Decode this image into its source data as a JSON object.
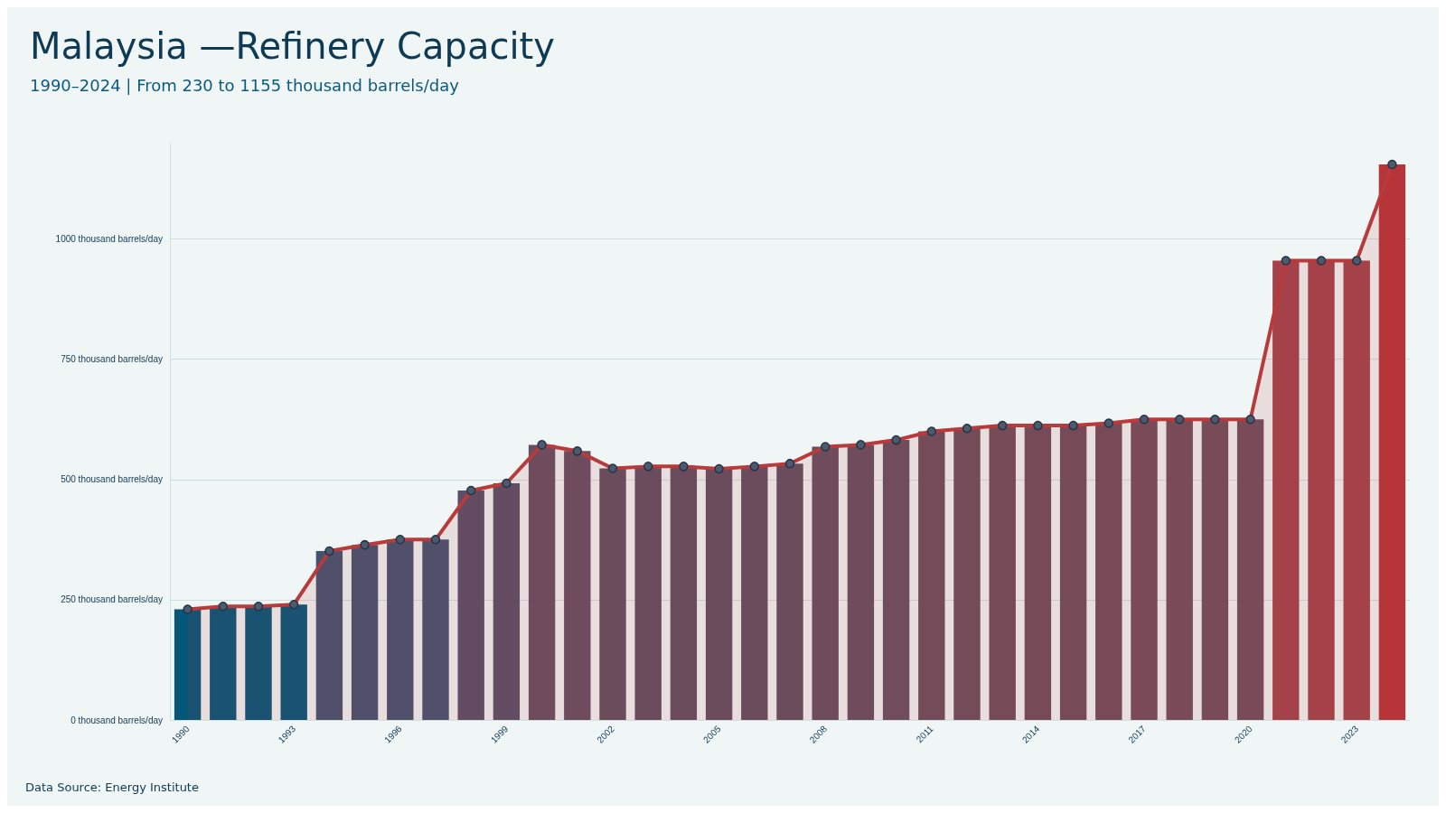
{
  "chart_data": {
    "type": "bar",
    "title": "Malaysia —Refinery Capacity",
    "subtitle": "1990–2024 | From 230 to 1155 thousand barrels/day",
    "categories": [
      "1990",
      null,
      null,
      "1993",
      null,
      null,
      "1996",
      null,
      null,
      "1999",
      null,
      null,
      "2002",
      null,
      null,
      "2005",
      null,
      null,
      "2008",
      null,
      null,
      "2011",
      null,
      null,
      "2014",
      null,
      null,
      "2017",
      null,
      null,
      "2020",
      null,
      null,
      "2023",
      null
    ],
    "series": [
      {
        "values": [
          230,
          236,
          236,
          240,
          351,
          364,
          375,
          375,
          477,
          492,
          572,
          559,
          523,
          527,
          527,
          522,
          527,
          533,
          568,
          572,
          582,
          600,
          606,
          612,
          612,
          612,
          617,
          625,
          625,
          625,
          625,
          955,
          955,
          955,
          1155
        ],
        "colors": [
          "#05577a",
          "#05577a",
          "#05577a",
          "#05577a",
          "#425471",
          "#425471",
          "#425471",
          "#425471",
          "#594f69",
          "#594f69",
          "#654f62",
          "#654f62",
          "#604f62",
          "#604f62",
          "#604f62",
          "#604f62",
          "#604f62",
          "#604f62",
          "#664f60",
          "#664f60",
          "#684f5f",
          "#6c4e5d",
          "#6c4e5d",
          "#6f4d5c",
          "#6f4d5c",
          "#6f4d5c",
          "#704d5c",
          "#714d5c",
          "#714d5c",
          "#714d5c",
          "#714d5c",
          "#a3424a",
          "#a3424a",
          "#a3424a",
          "#b5353a"
        ]
      },
      {
        "type": "area",
        "color": "#b83a3a",
        "values": [
          230,
          236,
          236,
          240,
          351,
          364,
          375,
          375,
          477,
          492,
          572,
          559,
          523,
          527,
          527,
          522,
          527,
          533,
          568,
          572,
          582,
          600,
          606,
          612,
          612,
          612,
          617,
          625,
          625,
          625,
          625,
          955,
          955,
          955,
          1155
        ]
      }
    ],
    "yticks": [
      {
        "value": 0,
        "label": "0 thousand barrels/day"
      },
      {
        "value": 250,
        "label": "250 thousand barrels/day"
      },
      {
        "value": 500,
        "label": "500 thousand barrels/day"
      },
      {
        "value": 750,
        "label": "750 thousand barrels/day"
      },
      {
        "value": 1000,
        "label": "1000 thousand barrels/day"
      }
    ],
    "ylim": [
      0,
      1200
    ],
    "grid": "y",
    "marker": "circle",
    "line_style": "solid",
    "annotations": [
      "Data Source: Energy Institute"
    ]
  }
}
